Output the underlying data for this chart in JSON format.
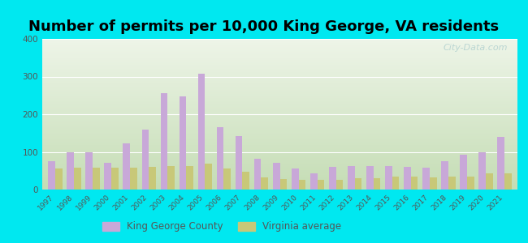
{
  "title": "Number of permits per 10,000 King George, VA residents",
  "years": [
    1997,
    1998,
    1999,
    2000,
    2001,
    2002,
    2003,
    2004,
    2005,
    2006,
    2007,
    2008,
    2009,
    2010,
    2011,
    2012,
    2013,
    2014,
    2015,
    2016,
    2017,
    2018,
    2019,
    2020,
    2021
  ],
  "king_george": [
    75,
    98,
    100,
    72,
    122,
    160,
    255,
    248,
    308,
    165,
    143,
    82,
    72,
    55,
    42,
    60,
    62,
    62,
    62,
    60,
    58,
    75,
    93,
    100,
    140
  ],
  "virginia_avg": [
    55,
    58,
    58,
    57,
    57,
    60,
    63,
    63,
    68,
    55,
    47,
    32,
    27,
    25,
    25,
    26,
    30,
    30,
    35,
    35,
    32,
    35,
    35,
    42,
    42
  ],
  "bar_color_kg": "#c8a8d8",
  "bar_color_va": "#c8c878",
  "background_outer": "#00e8f0",
  "ylim": [
    0,
    400
  ],
  "yticks": [
    0,
    100,
    200,
    300,
    400
  ],
  "legend_kg": "King George County",
  "legend_va": "Virginia average",
  "watermark": "City-Data.com",
  "title_fontsize": 13
}
